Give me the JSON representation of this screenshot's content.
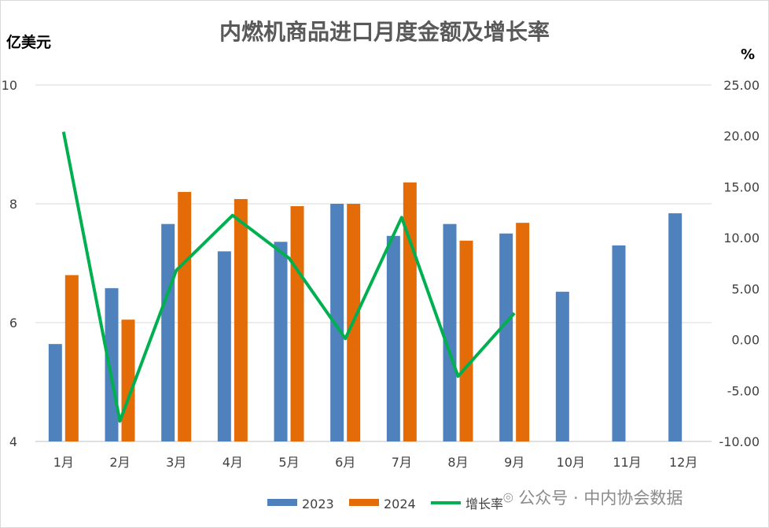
{
  "chart_data": {
    "type": "bar",
    "title": "内燃机商品进口月度金额及增长率",
    "y_left_unit": "亿美元",
    "y_right_unit": "%",
    "categories": [
      "1月",
      "2月",
      "3月",
      "4月",
      "5月",
      "6月",
      "7月",
      "8月",
      "9月",
      "10月",
      "11月",
      "12月"
    ],
    "ylim_left": [
      4,
      10
    ],
    "yticks_left": [
      "4",
      "6",
      "8",
      "10"
    ],
    "ylim_right": [
      -10,
      25
    ],
    "yticks_right": [
      "-10.00",
      "-5.00",
      "0.00",
      "5.00",
      "10.00",
      "15.00",
      "20.00",
      "25.00"
    ],
    "grid": true,
    "legend_position": "bottom",
    "series": [
      {
        "name": "2023",
        "type": "bar",
        "axis": "left",
        "color": "#4f81bd",
        "values": [
          5.64,
          6.58,
          7.66,
          7.2,
          7.36,
          8.0,
          7.46,
          7.66,
          7.5,
          6.52,
          7.3,
          7.84
        ]
      },
      {
        "name": "2024",
        "type": "bar",
        "axis": "left",
        "color": "#e36c09",
        "values": [
          6.8,
          6.05,
          8.2,
          8.08,
          7.96,
          8.0,
          8.36,
          7.38,
          7.68,
          null,
          null,
          null
        ]
      },
      {
        "name": "增长率",
        "type": "line",
        "axis": "right",
        "color": "#00b050",
        "values": [
          20.4,
          -8.0,
          6.8,
          12.2,
          8.0,
          0.1,
          12.0,
          -3.6,
          2.6,
          null,
          null,
          null
        ]
      }
    ]
  },
  "watermark": "公众号 · 中内协会数据"
}
